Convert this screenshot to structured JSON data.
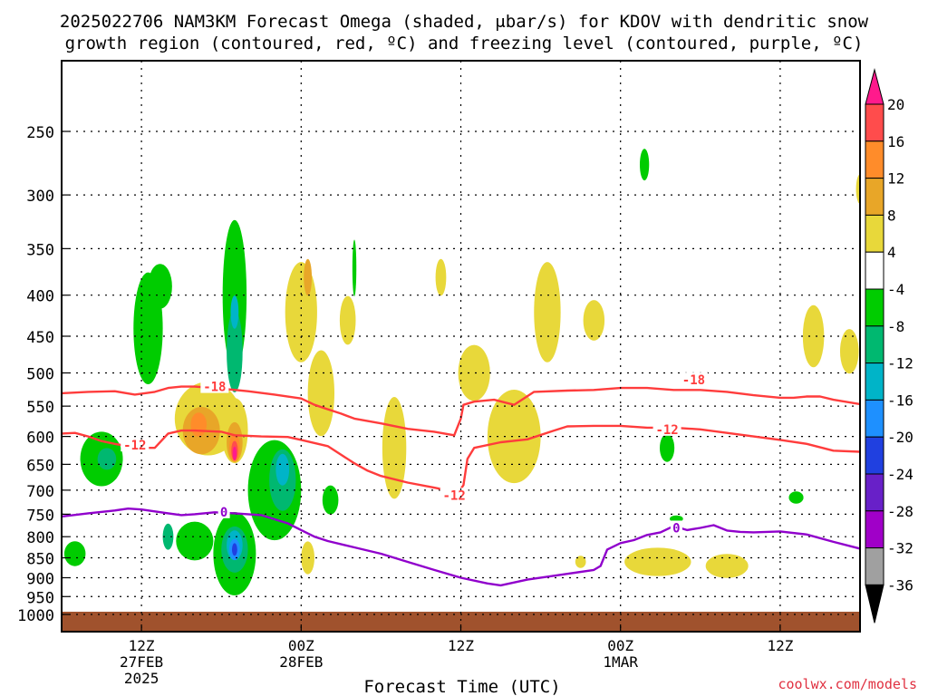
{
  "title_line1": "2025022706 NAM3KM Forecast Omega (shaded, μbar/s) for KDOV with dendritic snow",
  "title_line2": "growth region (contoured, red, ºC) and freezing level (contoured, purple, ºC)",
  "x_axis_label": "Forecast Time (UTC)",
  "watermark": "coolwx.com/models",
  "chart_data": {
    "type": "contour",
    "y_axis": {
      "scale": "log-pressure",
      "units": "hPa",
      "range": [
        1000,
        200
      ],
      "ticks": [
        250,
        300,
        350,
        400,
        450,
        500,
        550,
        600,
        650,
        700,
        750,
        800,
        850,
        900,
        950,
        1000
      ],
      "grid": true
    },
    "x_axis": {
      "units": "forecast hour from 2025022706",
      "range": [
        0,
        60
      ],
      "ticks": [
        {
          "hour": 6,
          "label": "12Z",
          "date": "27FEB",
          "year": "2025"
        },
        {
          "hour": 18,
          "label": "00Z",
          "date": "28FEB",
          "year": ""
        },
        {
          "hour": 30,
          "label": "12Z",
          "date": "",
          "year": ""
        },
        {
          "hour": 42,
          "label": "00Z",
          "date": "1MAR",
          "year": ""
        },
        {
          "hour": 54,
          "label": "12Z",
          "date": "",
          "year": ""
        }
      ]
    },
    "colorbar": {
      "labels": [
        "20",
        "16",
        "12",
        "8",
        "4",
        "-4",
        "-8",
        "-12",
        "-16",
        "-20",
        "-24",
        "-28",
        "-32",
        "-36"
      ],
      "colors": [
        "#ff1a8c",
        "#ff4c4c",
        "#ff8c2a",
        "#e8a628",
        "#e8d83a",
        "#ffffff",
        "#00cc00",
        "#00b870",
        "#00b4c8",
        "#1e90ff",
        "#2040e0",
        "#6820c8",
        "#a000c8",
        "#a0a0a0",
        "#000000"
      ]
    },
    "contour_labels": [
      {
        "series": "-18C",
        "text": "-18",
        "color": "#ff3c3c",
        "at_hour": 11.5,
        "at_hpa": 520
      },
      {
        "series": "-18C",
        "text": "-18",
        "color": "#ff3c3c",
        "at_hour": 47.5,
        "at_hpa": 510
      },
      {
        "series": "-12C",
        "text": "-12",
        "color": "#ff3c3c",
        "at_hour": 5.5,
        "at_hpa": 615
      },
      {
        "series": "-12C",
        "text": "-12",
        "color": "#ff3c3c",
        "at_hour": 29.5,
        "at_hpa": 710
      },
      {
        "series": "-12C",
        "text": "-12",
        "color": "#ff3c3c",
        "at_hour": 45.5,
        "at_hpa": 588
      },
      {
        "series": "0C",
        "text": "0",
        "color": "#9000cc",
        "at_hour": 12.2,
        "at_hpa": 745
      },
      {
        "series": "0C",
        "text": "0",
        "color": "#9000cc",
        "at_hour": 46.2,
        "at_hpa": 780
      }
    ],
    "series": [
      {
        "name": "-18C",
        "color": "#ff3c3c",
        "points": [
          [
            0,
            530
          ],
          [
            2,
            528
          ],
          [
            4,
            527
          ],
          [
            5.5,
            532
          ],
          [
            7,
            528
          ],
          [
            8,
            522
          ],
          [
            9,
            520
          ],
          [
            10,
            520
          ],
          [
            12,
            523
          ],
          [
            14,
            527
          ],
          [
            16,
            532
          ],
          [
            18,
            538
          ],
          [
            19,
            548
          ],
          [
            20,
            555
          ],
          [
            21,
            562
          ],
          [
            22,
            570
          ],
          [
            24,
            578
          ],
          [
            26,
            587
          ],
          [
            28,
            592
          ],
          [
            29.5,
            598
          ],
          [
            30,
            570
          ],
          [
            30.2,
            548
          ],
          [
            31,
            543
          ],
          [
            32.5,
            540
          ],
          [
            34,
            548
          ],
          [
            35.5,
            528
          ],
          [
            38,
            526
          ],
          [
            40,
            525
          ],
          [
            42,
            522
          ],
          [
            44,
            522
          ],
          [
            46,
            525
          ],
          [
            48,
            525
          ],
          [
            50,
            528
          ],
          [
            52,
            533
          ],
          [
            54,
            537
          ],
          [
            55,
            537
          ],
          [
            56,
            535
          ],
          [
            57,
            535
          ],
          [
            58,
            540
          ],
          [
            60,
            547
          ]
        ]
      },
      {
        "name": "-12C",
        "color": "#ff3c3c",
        "points": [
          [
            0,
            595
          ],
          [
            1,
            594
          ],
          [
            2,
            600
          ],
          [
            3,
            608
          ],
          [
            4,
            613
          ],
          [
            5,
            617
          ],
          [
            6,
            620
          ],
          [
            7,
            620
          ],
          [
            8,
            595
          ],
          [
            9,
            590
          ],
          [
            10,
            590
          ],
          [
            12,
            592
          ],
          [
            13,
            598
          ],
          [
            15,
            600
          ],
          [
            17,
            601
          ],
          [
            18,
            606
          ],
          [
            20,
            617
          ],
          [
            22,
            648
          ],
          [
            23,
            662
          ],
          [
            24,
            672
          ],
          [
            26,
            685
          ],
          [
            28,
            695
          ],
          [
            29.8,
            705
          ],
          [
            30.2,
            690
          ],
          [
            30.5,
            640
          ],
          [
            31,
            620
          ],
          [
            33,
            610
          ],
          [
            35,
            605
          ],
          [
            37,
            590
          ],
          [
            38,
            583
          ],
          [
            40,
            582
          ],
          [
            42,
            582
          ],
          [
            44,
            585
          ],
          [
            46,
            585
          ],
          [
            48,
            588
          ],
          [
            50,
            594
          ],
          [
            52,
            600
          ],
          [
            54,
            606
          ],
          [
            56,
            613
          ],
          [
            58,
            625
          ],
          [
            60,
            627
          ]
        ]
      },
      {
        "name": "0C",
        "color": "#9000cc",
        "points": [
          [
            0,
            755
          ],
          [
            2,
            748
          ],
          [
            4,
            742
          ],
          [
            5,
            738
          ],
          [
            6,
            740
          ],
          [
            8,
            748
          ],
          [
            9,
            752
          ],
          [
            10,
            750
          ],
          [
            11.5,
            746
          ],
          [
            13,
            748
          ],
          [
            15,
            752
          ],
          [
            17,
            770
          ],
          [
            18,
            785
          ],
          [
            19,
            800
          ],
          [
            20,
            810
          ],
          [
            22,
            825
          ],
          [
            24,
            840
          ],
          [
            26,
            860
          ],
          [
            28,
            880
          ],
          [
            30,
            900
          ],
          [
            32,
            915
          ],
          [
            33,
            920
          ],
          [
            35,
            905
          ],
          [
            38,
            890
          ],
          [
            40,
            880
          ],
          [
            40.5,
            870
          ],
          [
            41,
            830
          ],
          [
            42,
            815
          ],
          [
            43,
            808
          ],
          [
            44,
            796
          ],
          [
            45,
            790
          ],
          [
            46,
            776
          ],
          [
            47,
            785
          ],
          [
            48,
            780
          ],
          [
            49,
            774
          ],
          [
            50,
            786
          ],
          [
            51,
            789
          ],
          [
            52,
            790
          ],
          [
            54,
            788
          ],
          [
            56,
            795
          ],
          [
            58,
            812
          ],
          [
            60,
            828
          ]
        ]
      }
    ],
    "omega_regions": [
      {
        "value": -8,
        "color": "#00cc00",
        "center": [
          3,
          640
        ],
        "rh": 1.6,
        "rp": 100
      },
      {
        "value": -12,
        "color": "#00b870",
        "center": [
          3.4,
          640
        ],
        "rh": 0.7,
        "rp": 40
      },
      {
        "value": -8,
        "color": "#00cc00",
        "center": [
          1,
          840
        ],
        "rh": 0.8,
        "rp": 60
      },
      {
        "value": -8,
        "color": "#00cc00",
        "center": [
          6.5,
          440
        ],
        "rh": 1.1,
        "rp": 140
      },
      {
        "value": -8,
        "color": "#00cc00",
        "center": [
          7.4,
          390
        ],
        "rh": 0.9,
        "rp": 50
      },
      {
        "value": -8,
        "color": "#00cc00",
        "center": [
          13,
          400
        ],
        "rh": 0.9,
        "rp": 170
      },
      {
        "value": -12,
        "color": "#00b870",
        "center": [
          13,
          470
        ],
        "rh": 0.6,
        "rp": 110
      },
      {
        "value": -16,
        "color": "#00b4c8",
        "center": [
          13,
          420
        ],
        "rh": 0.3,
        "rp": 40
      },
      {
        "value": -8,
        "color": "#00cc00",
        "center": [
          13,
          840
        ],
        "rh": 1.6,
        "rp": 200
      },
      {
        "value": -12,
        "color": "#00b870",
        "center": [
          13,
          830
        ],
        "rh": 1.0,
        "rp": 110
      },
      {
        "value": -16,
        "color": "#00b4c8",
        "center": [
          13,
          820
        ],
        "rh": 0.6,
        "rp": 70
      },
      {
        "value": -20,
        "color": "#1e90ff",
        "center": [
          13,
          830
        ],
        "rh": 0.4,
        "rp": 50
      },
      {
        "value": -24,
        "color": "#2040e0",
        "center": [
          13,
          830
        ],
        "rh": 0.2,
        "rp": 30
      },
      {
        "value": -8,
        "color": "#00cc00",
        "center": [
          16,
          700
        ],
        "rh": 2.0,
        "rp": 200
      },
      {
        "value": -12,
        "color": "#00b870",
        "center": [
          16.6,
          680
        ],
        "rh": 1.0,
        "rp": 120
      },
      {
        "value": -16,
        "color": "#00b4c8",
        "center": [
          16.6,
          660
        ],
        "rh": 0.5,
        "rp": 60
      },
      {
        "value": -8,
        "color": "#00cc00",
        "center": [
          10,
          810
        ],
        "rh": 1.4,
        "rp": 90
      },
      {
        "value": -12,
        "color": "#00b870",
        "center": [
          8,
          800
        ],
        "rh": 0.4,
        "rp": 60
      },
      {
        "value": -8,
        "color": "#00cc00",
        "center": [
          20.2,
          720
        ],
        "rh": 0.6,
        "rp": 60
      },
      {
        "value": -8,
        "color": "#00cc00",
        "center": [
          22,
          370
        ],
        "rh": 0.15,
        "rp": 60
      },
      {
        "value": -8,
        "color": "#00cc00",
        "center": [
          43.8,
          275
        ],
        "rh": 0.35,
        "rp": 25
      },
      {
        "value": -8,
        "color": "#00cc00",
        "center": [
          45.5,
          620
        ],
        "rh": 0.55,
        "rp": 50
      },
      {
        "value": -8,
        "color": "#00cc00",
        "center": [
          55.2,
          715
        ],
        "rh": 0.55,
        "rp": 25
      },
      {
        "value": -8,
        "color": "#00cc00",
        "center": [
          46.2,
          760
        ],
        "rh": 0.5,
        "rp": 15
      },
      {
        "value": 4,
        "color": "#e8d83a",
        "center": [
          11,
          570
        ],
        "rh": 2.5,
        "rp": 120
      },
      {
        "value": 8,
        "color": "#e8a628",
        "center": [
          10.5,
          590
        ],
        "rh": 1.4,
        "rp": 80
      },
      {
        "value": 12,
        "color": "#ff8c2a",
        "center": [
          10.3,
          580
        ],
        "rh": 0.6,
        "rp": 40
      },
      {
        "value": 4,
        "color": "#e8d83a",
        "center": [
          13,
          590
        ],
        "rh": 1.0,
        "rp": 110
      },
      {
        "value": 8,
        "color": "#e8a628",
        "center": [
          13,
          610
        ],
        "rh": 0.6,
        "rp": 70
      },
      {
        "value": 12,
        "color": "#ff8c2a",
        "center": [
          13,
          620
        ],
        "rh": 0.4,
        "rp": 50
      },
      {
        "value": 16,
        "color": "#ff4c4c",
        "center": [
          13,
          625
        ],
        "rh": 0.25,
        "rp": 35
      },
      {
        "value": 20,
        "color": "#ff1a8c",
        "center": [
          13,
          630
        ],
        "rh": 0.15,
        "rp": 25
      },
      {
        "value": 4,
        "color": "#e8d83a",
        "center": [
          18,
          420
        ],
        "rh": 1.2,
        "rp": 120
      },
      {
        "value": 8,
        "color": "#e8a628",
        "center": [
          18.5,
          380
        ],
        "rh": 0.3,
        "rp": 40
      },
      {
        "value": 4,
        "color": "#e8d83a",
        "center": [
          19.5,
          530
        ],
        "rh": 1.0,
        "rp": 130
      },
      {
        "value": 4,
        "color": "#e8d83a",
        "center": [
          18.5,
          850
        ],
        "rh": 0.5,
        "rp": 80
      },
      {
        "value": 4,
        "color": "#e8d83a",
        "center": [
          25,
          620
        ],
        "rh": 0.9,
        "rp": 180
      },
      {
        "value": 4,
        "color": "#e8d83a",
        "center": [
          21.5,
          430
        ],
        "rh": 0.6,
        "rp": 60
      },
      {
        "value": 4,
        "color": "#e8d83a",
        "center": [
          28.5,
          380
        ],
        "rh": 0.4,
        "rp": 40
      },
      {
        "value": 4,
        "color": "#e8d83a",
        "center": [
          31,
          500
        ],
        "rh": 1.2,
        "rp": 80
      },
      {
        "value": 4,
        "color": "#e8d83a",
        "center": [
          34,
          600
        ],
        "rh": 2.0,
        "rp": 160
      },
      {
        "value": 4,
        "color": "#e8d83a",
        "center": [
          36.5,
          420
        ],
        "rh": 1.0,
        "rp": 120
      },
      {
        "value": 4,
        "color": "#e8d83a",
        "center": [
          40,
          430
        ],
        "rh": 0.8,
        "rp": 50
      },
      {
        "value": 4,
        "color": "#e8d83a",
        "center": [
          44.8,
          860
        ],
        "rh": 2.5,
        "rp": 70
      },
      {
        "value": 4,
        "color": "#e8d83a",
        "center": [
          50,
          870
        ],
        "rh": 1.6,
        "rp": 60
      },
      {
        "value": 4,
        "color": "#e8d83a",
        "center": [
          39,
          860
        ],
        "rh": 0.4,
        "rp": 30
      },
      {
        "value": 4,
        "color": "#e8d83a",
        "center": [
          56.5,
          450
        ],
        "rh": 0.8,
        "rp": 80
      },
      {
        "value": 4,
        "color": "#e8d83a",
        "center": [
          59.2,
          470
        ],
        "rh": 0.7,
        "rp": 60
      },
      {
        "value": 4,
        "color": "#e8d83a",
        "center": [
          60,
          295
        ],
        "rh": 0.3,
        "rp": 25
      }
    ]
  }
}
